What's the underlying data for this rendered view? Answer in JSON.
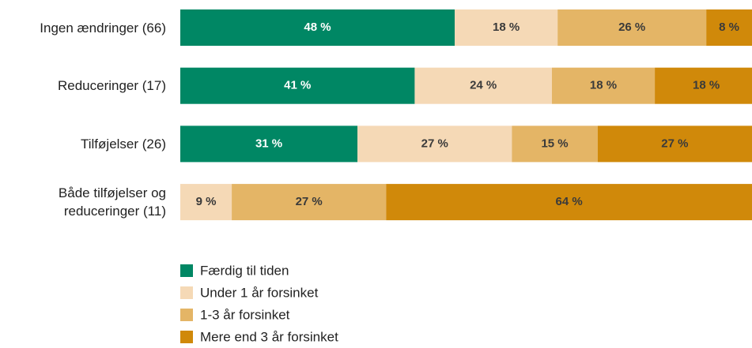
{
  "chart_data": {
    "type": "stacked-bar-horizontal",
    "categories": [
      "Ingen ændringer (66)",
      "Reduceringer (17)",
      "Tilføjelser (26)",
      "Både tilføjelser og reduceringer (11)"
    ],
    "xlim": [
      0,
      100
    ],
    "series": [
      {
        "name": "Færdig til tiden",
        "color": "#008764",
        "values": [
          48,
          41,
          31,
          null
        ],
        "value_labels": [
          "48 %",
          "41 %",
          "31 %",
          null
        ]
      },
      {
        "name": "Under 1 år forsinket",
        "color": "#f5d9b6",
        "values": [
          18,
          24,
          27,
          9
        ],
        "value_labels": [
          "18 %",
          "24 %",
          "27 %",
          "9 %"
        ]
      },
      {
        "name": "1-3 år forsinket",
        "color": "#e4b566",
        "values": [
          26,
          18,
          15,
          27
        ],
        "value_labels": [
          "26 %",
          "18 %",
          "15 %",
          "27 %"
        ]
      },
      {
        "name": "Mere end 3 år forsinket",
        "color": "#d0890a",
        "values": [
          8,
          18,
          27,
          64
        ],
        "value_labels": [
          "8 %",
          "18 %",
          "27 %",
          "64 %"
        ]
      }
    ]
  }
}
